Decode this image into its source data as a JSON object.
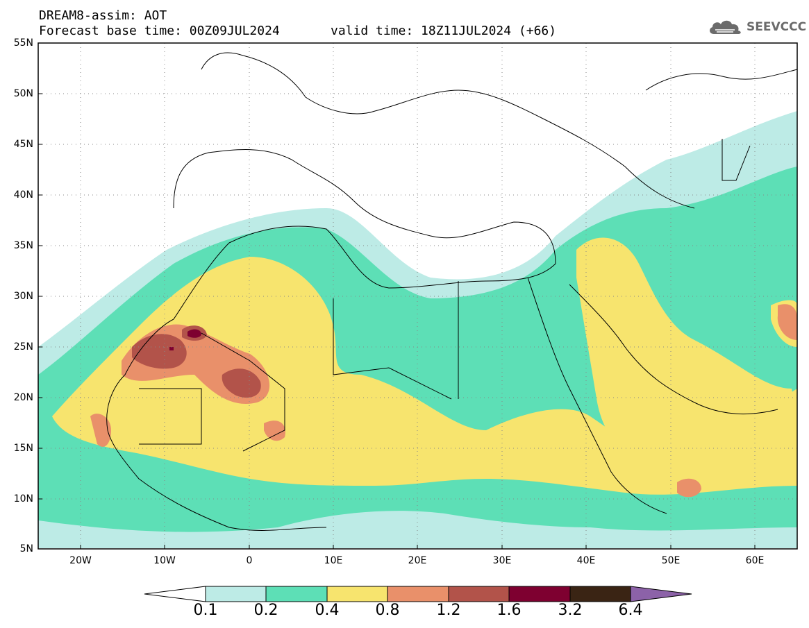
{
  "header": {
    "line1": "DREAM8-assim: AOT",
    "line2": "Forecast base time: 00Z09JUL2024",
    "line3": "valid time: 18Z11JUL2024 (+66)"
  },
  "logo": {
    "text": "SEEVCCC",
    "icon": "cloud-icon"
  },
  "axes": {
    "lat_labels": [
      "55N",
      "50N",
      "45N",
      "40N",
      "35N",
      "30N",
      "25N",
      "20N",
      "15N",
      "10N",
      "5N"
    ],
    "lon_labels": [
      "20W",
      "10W",
      "0",
      "10E",
      "20E",
      "30E",
      "40E",
      "50E",
      "60E"
    ],
    "lat_range": [
      5,
      55
    ],
    "lon_range": [
      -25,
      65
    ],
    "grid": true
  },
  "colorbar": {
    "thresholds": [
      "0.1",
      "0.2",
      "0.4",
      "0.8",
      "1.2",
      "1.6",
      "3.2",
      "6.4"
    ],
    "colors": [
      "#ffffff",
      "#bdebe6",
      "#5ddfb6",
      "#f7e46e",
      "#e9906a",
      "#b2534a",
      "#7e0030",
      "#3a2414",
      "#8c62a8"
    ]
  },
  "chart_data": {
    "type": "heatmap",
    "title": "DREAM8-assim: AOT",
    "variable": "AOT",
    "levels": [
      0.1,
      0.2,
      0.4,
      0.8,
      1.2,
      1.6,
      3.2,
      6.4
    ],
    "xlim": [
      -25,
      65
    ],
    "ylim": [
      5,
      55
    ]
  }
}
